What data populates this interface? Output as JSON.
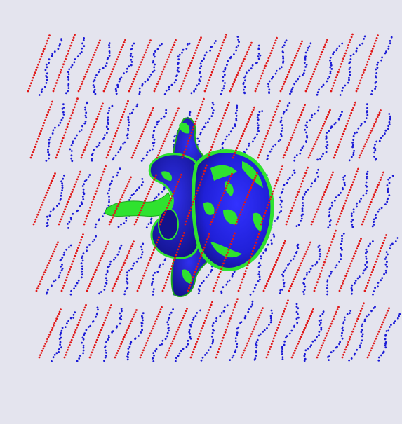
{
  "viewer": {
    "background_color": "#e4e4ee"
  },
  "colors": {
    "background": "#e4e4ee",
    "point_red": "#e01818",
    "point_blue": "#1a1ad6",
    "surface_blue": "#2323e0",
    "surface_blue_dark": "#1616a8",
    "surface_green": "#2fe22f",
    "surface_green_dark": "#1ca81c"
  },
  "scene": {
    "object": "vertebra-surface",
    "point_series": [
      {
        "color": "red"
      },
      {
        "color": "blue"
      }
    ]
  }
}
